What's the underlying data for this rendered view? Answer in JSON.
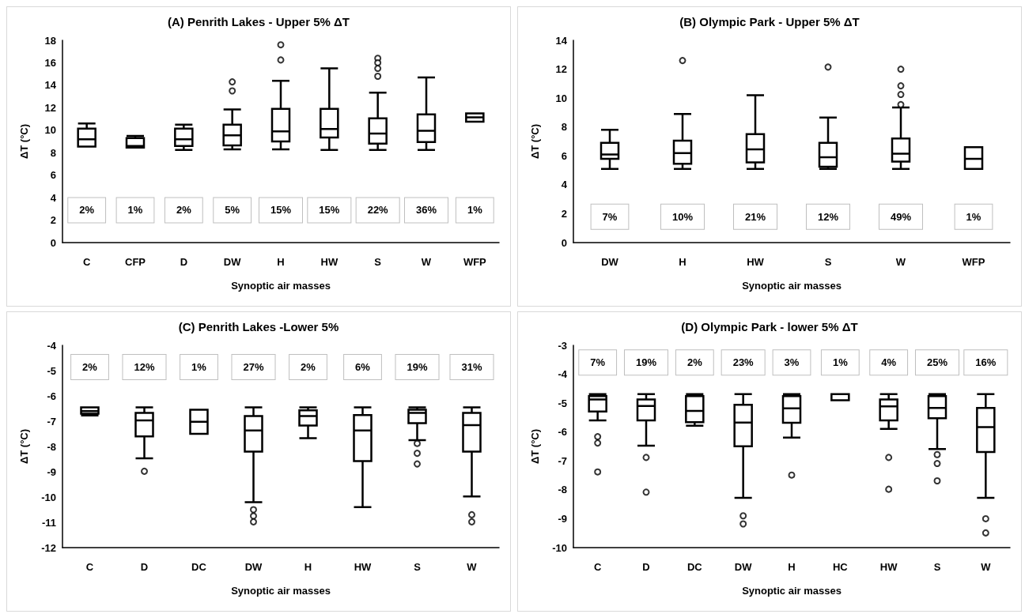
{
  "chart_data": [
    {
      "type": "box",
      "title": "(A) Penrith Lakes - Upper 5% ΔT",
      "xlabel": "Synoptic air masses",
      "ylabel": "ΔT (°C)",
      "categories": [
        "C",
        "CFP",
        "D",
        "DW",
        "H",
        "HW",
        "S",
        "W",
        "WFP"
      ],
      "ylim": [
        0,
        18
      ],
      "yticks": [
        0,
        2,
        4,
        6,
        8,
        10,
        12,
        14,
        16,
        18
      ],
      "marker": "circle",
      "boxes": [
        {
          "low": 8.55,
          "q1": 8.55,
          "median": 9.2,
          "q3": 10.15,
          "high": 10.6
        },
        {
          "low": 8.45,
          "q1": 8.45,
          "median": 8.6,
          "q3": 9.3,
          "high": 9.5
        },
        {
          "low": 8.25,
          "q1": 8.6,
          "median": 9.2,
          "q3": 10.15,
          "high": 10.5
        },
        {
          "low": 8.3,
          "q1": 8.65,
          "median": 9.55,
          "q3": 10.5,
          "high": 11.85,
          "outliers": [
            14.3,
            13.5
          ]
        },
        {
          "low": 8.3,
          "q1": 9.0,
          "median": 9.9,
          "q3": 11.9,
          "high": 14.4,
          "outliers": [
            17.6,
            16.25
          ]
        },
        {
          "low": 8.25,
          "q1": 9.35,
          "median": 10.1,
          "q3": 11.9,
          "high": 15.5
        },
        {
          "low": 8.25,
          "q1": 8.8,
          "median": 9.7,
          "q3": 11.05,
          "high": 13.35,
          "outliers": [
            16.4,
            16.0,
            15.5,
            14.8
          ]
        },
        {
          "low": 8.25,
          "q1": 8.95,
          "median": 9.95,
          "q3": 11.4,
          "high": 14.7
        },
        {
          "low": 10.75,
          "q1": 10.75,
          "median": 11.15,
          "q3": 11.5,
          "high": 11.5
        }
      ],
      "annotations": [
        "2%",
        "1%",
        "2%",
        "5%",
        "15%",
        "15%",
        "22%",
        "36%",
        "1%"
      ]
    },
    {
      "type": "box",
      "title": "(B) Olympic Park - Upper 5% ΔT",
      "xlabel": "Synoptic air masses",
      "ylabel": "ΔT (°C)",
      "categories": [
        "DW",
        "H",
        "HW",
        "S",
        "W",
        "WFP"
      ],
      "ylim": [
        0,
        14
      ],
      "yticks": [
        0,
        2,
        4,
        6,
        8,
        10,
        12,
        14
      ],
      "marker": "circle",
      "boxes": [
        {
          "low": 5.1,
          "q1": 5.8,
          "median": 6.1,
          "q3": 6.9,
          "high": 7.8
        },
        {
          "low": 5.1,
          "q1": 5.45,
          "median": 6.2,
          "q3": 7.05,
          "high": 8.9,
          "outliers": [
            12.6
          ]
        },
        {
          "low": 5.1,
          "q1": 5.55,
          "median": 6.45,
          "q3": 7.5,
          "high": 10.2
        },
        {
          "low": 5.1,
          "q1": 5.25,
          "median": 5.9,
          "q3": 6.9,
          "high": 8.65,
          "outliers": [
            12.15
          ]
        },
        {
          "low": 5.1,
          "q1": 5.6,
          "median": 6.15,
          "q3": 7.2,
          "high": 9.35,
          "outliers": [
            12.0,
            10.85,
            10.25,
            9.55
          ]
        },
        {
          "low": 5.1,
          "q1": 5.1,
          "median": 5.8,
          "q3": 6.6,
          "high": 6.6
        }
      ],
      "annotations": [
        "7%",
        "10%",
        "21%",
        "12%",
        "49%",
        "1%"
      ]
    },
    {
      "type": "box",
      "title": "(C) Penrith Lakes -Lower 5%",
      "xlabel": "Synoptic air masses",
      "ylabel": "ΔT (°C)",
      "categories": [
        "C",
        "D",
        "DC",
        "DW",
        "H",
        "HW",
        "S",
        "W"
      ],
      "ylim": [
        -12,
        -4
      ],
      "yticks": [
        -12,
        -11,
        -10,
        -9,
        -8,
        -7,
        -6,
        -5,
        -4
      ],
      "marker": "circle",
      "boxes": [
        {
          "low": -6.77,
          "q1": -6.7,
          "median": -6.6,
          "q3": -6.45,
          "high": -6.45
        },
        {
          "low": -8.47,
          "q1": -7.6,
          "median": -6.97,
          "q3": -6.67,
          "high": -6.45,
          "outliers": [
            -8.98
          ]
        },
        {
          "low": -7.5,
          "q1": -7.5,
          "median": -7.02,
          "q3": -6.55,
          "high": -6.55
        },
        {
          "low": -10.2,
          "q1": -8.2,
          "median": -7.37,
          "q3": -6.8,
          "high": -6.45,
          "outliers": [
            -10.5,
            -10.75,
            -10.98
          ]
        },
        {
          "low": -7.67,
          "q1": -7.17,
          "median": -6.8,
          "q3": -6.57,
          "high": -6.45
        },
        {
          "low": -10.4,
          "q1": -8.58,
          "median": -7.37,
          "q3": -6.76,
          "high": -6.45
        },
        {
          "low": -7.75,
          "q1": -7.08,
          "median": -6.67,
          "q3": -6.55,
          "high": -6.45,
          "outliers": [
            -7.88,
            -8.27,
            -8.69
          ]
        },
        {
          "low": -9.98,
          "q1": -8.2,
          "median": -7.16,
          "q3": -6.67,
          "high": -6.45,
          "outliers": [
            -10.7,
            -10.98
          ]
        }
      ],
      "annotations": [
        "2%",
        "12%",
        "1%",
        "27%",
        "2%",
        "6%",
        "19%",
        "31%"
      ]
    },
    {
      "type": "box",
      "title": "(D) Olympic Park - lower 5% ΔT",
      "xlabel": "Synoptic air masses",
      "ylabel": "ΔT (°C)",
      "categories": [
        "C",
        "D",
        "DC",
        "DW",
        "H",
        "HC",
        "HW",
        "S",
        "W"
      ],
      "ylim": [
        -10,
        -3
      ],
      "yticks": [
        -10,
        -9,
        -8,
        -7,
        -6,
        -5,
        -4,
        -3
      ],
      "marker": "circle",
      "boxes": [
        {
          "low": -5.6,
          "q1": -5.29,
          "median": -4.87,
          "q3": -4.76,
          "high": -4.69,
          "outliers": [
            -6.16,
            -6.38,
            -7.38
          ]
        },
        {
          "low": -6.47,
          "q1": -5.6,
          "median": -5.1,
          "q3": -4.87,
          "high": -4.69,
          "outliers": [
            -6.88,
            -8.08
          ]
        },
        {
          "low": -5.78,
          "q1": -5.66,
          "median": -5.27,
          "q3": -4.76,
          "high": -4.69
        },
        {
          "low": -8.28,
          "q1": -6.49,
          "median": -5.67,
          "q3": -5.06,
          "high": -4.69,
          "outliers": [
            -8.9,
            -9.18
          ]
        },
        {
          "low": -6.19,
          "q1": -5.68,
          "median": -5.18,
          "q3": -4.76,
          "high": -4.69,
          "outliers": [
            -7.49
          ]
        },
        {
          "low": -4.9,
          "q1": -4.9,
          "median": -4.9,
          "q3": -4.69,
          "high": -4.69
        },
        {
          "low": -5.89,
          "q1": -5.6,
          "median": -5.11,
          "q3": -4.87,
          "high": -4.69,
          "outliers": [
            -6.88,
            -7.98
          ]
        },
        {
          "low": -6.59,
          "q1": -5.52,
          "median": -5.17,
          "q3": -4.76,
          "high": -4.69,
          "outliers": [
            -6.78,
            -7.09,
            -7.69
          ]
        },
        {
          "low": -8.28,
          "q1": -6.69,
          "median": -5.83,
          "q3": -5.17,
          "high": -4.69,
          "outliers": [
            -9.0,
            -9.49
          ]
        }
      ],
      "annotations": [
        "7%",
        "19%",
        "2%",
        "23%",
        "3%",
        "1%",
        "4%",
        "25%",
        "16%"
      ]
    }
  ]
}
